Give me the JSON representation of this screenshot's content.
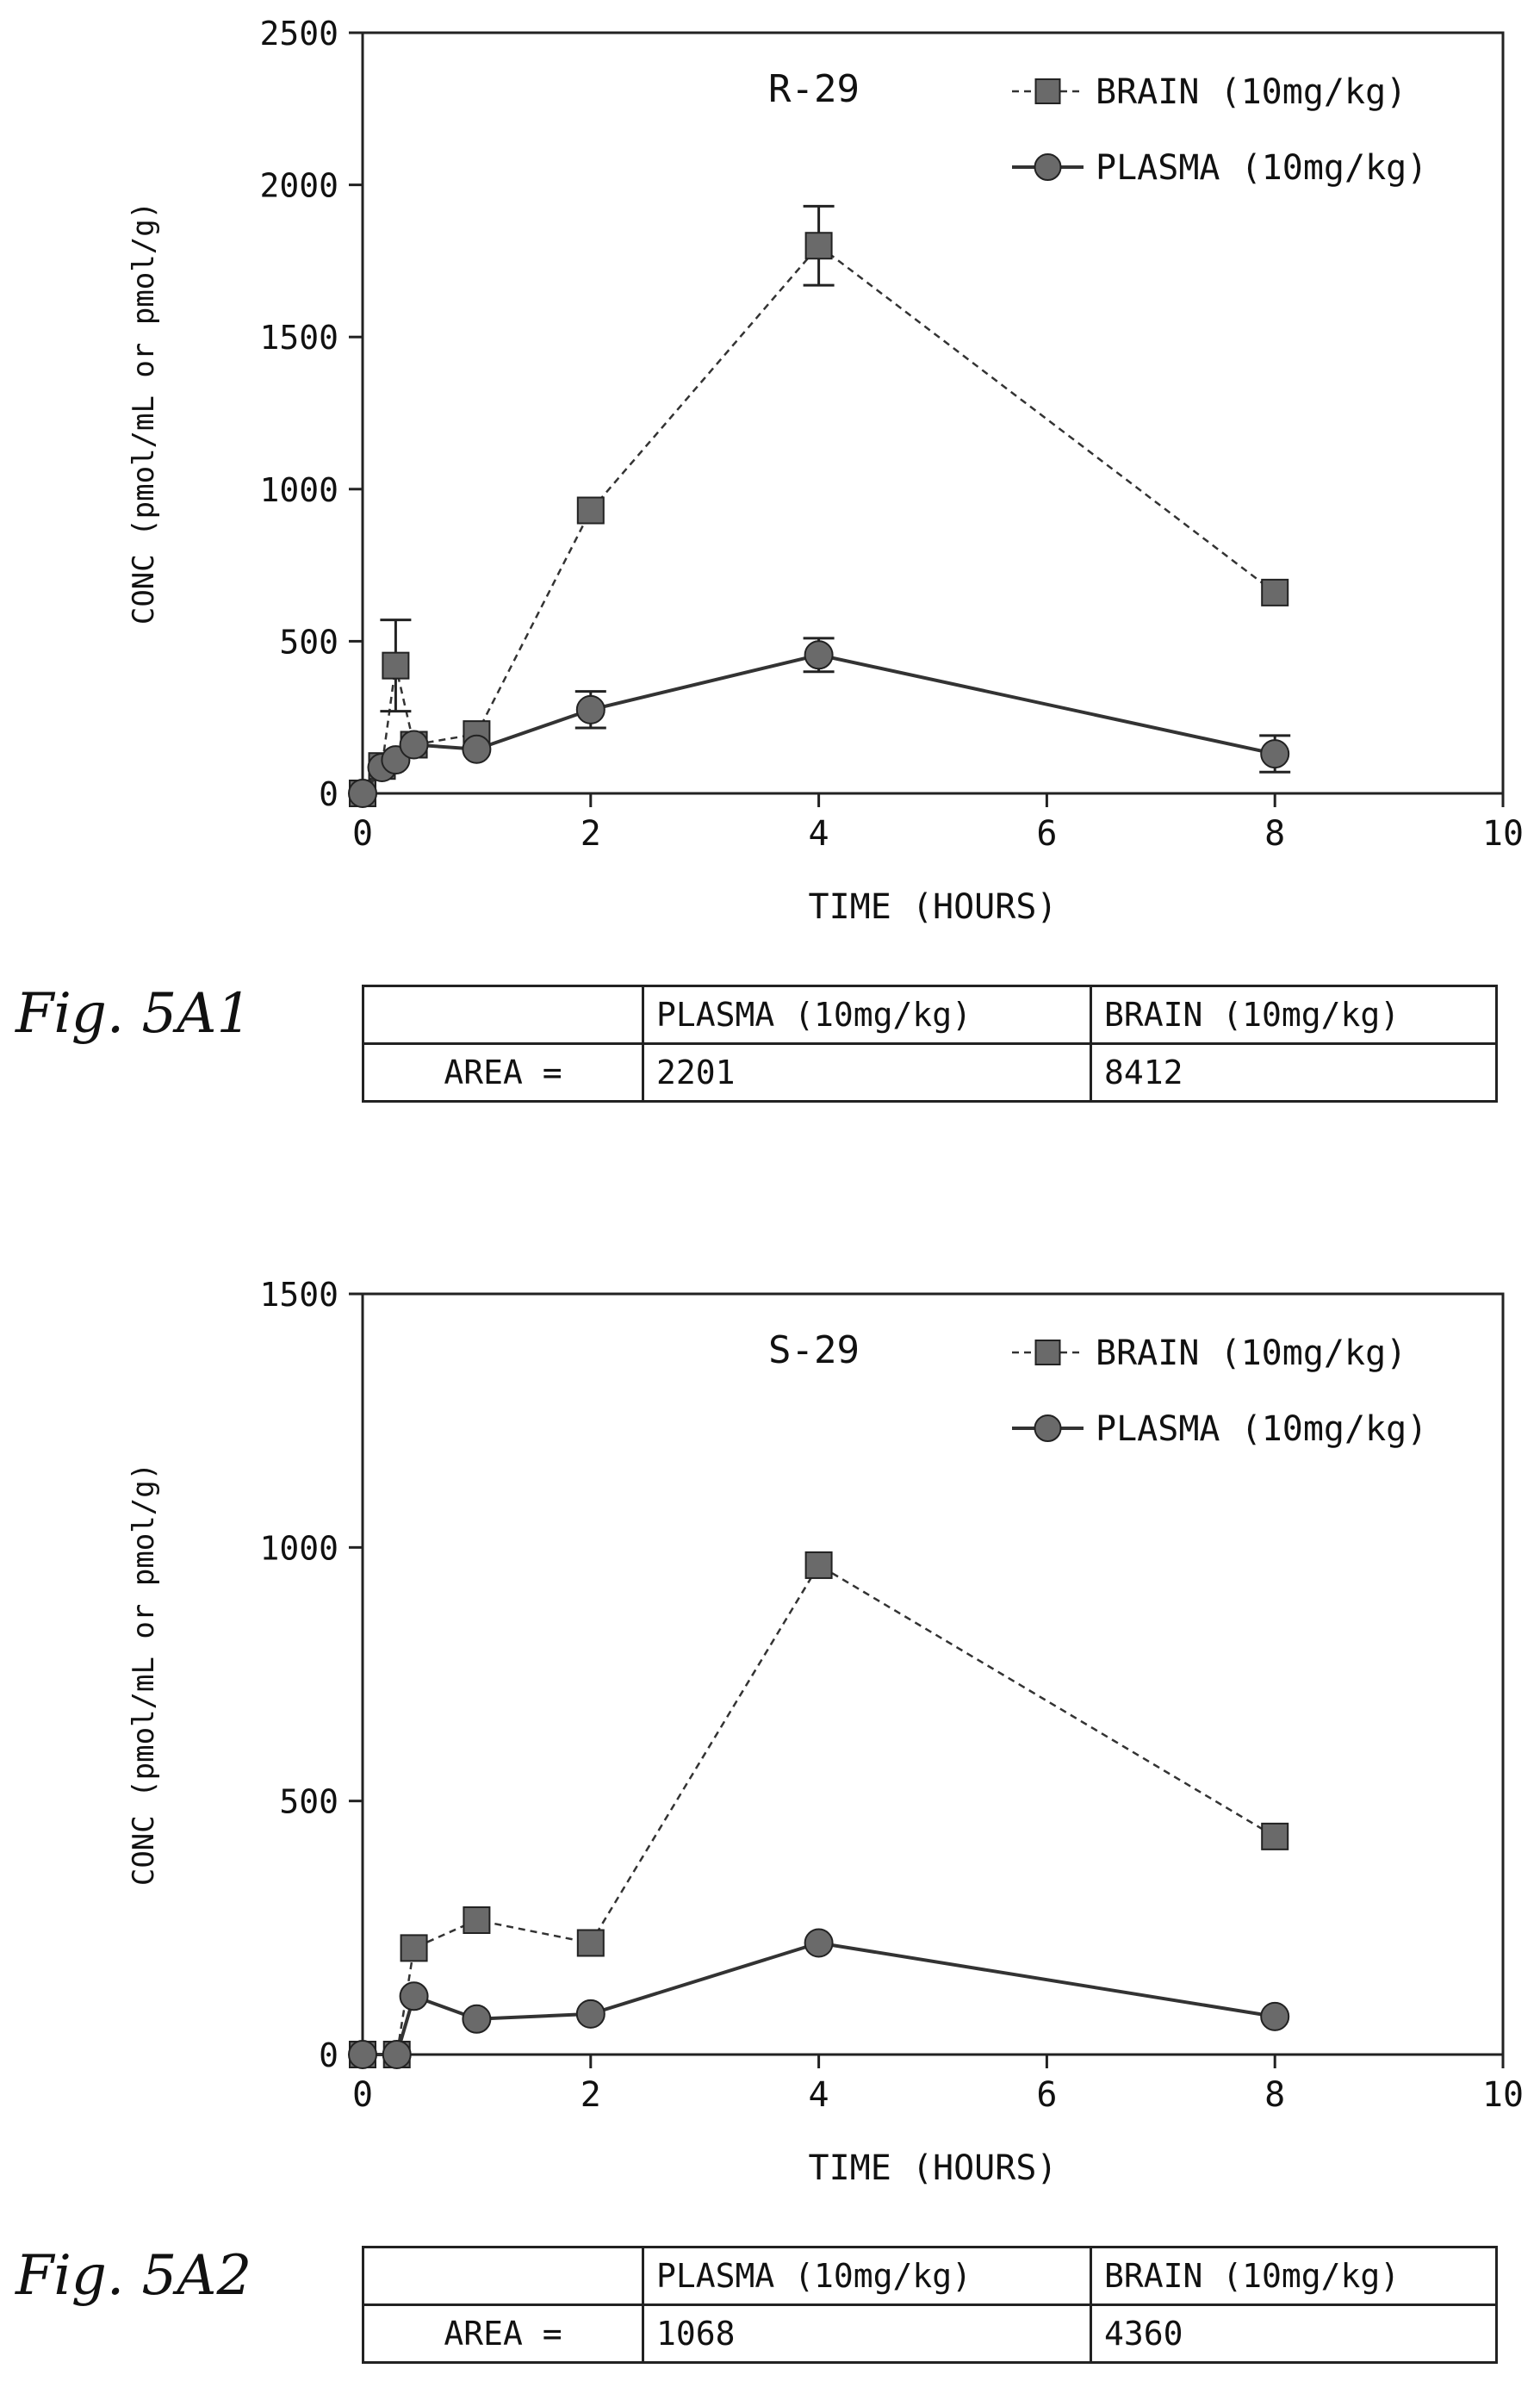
{
  "chart_data": [
    {
      "type": "line",
      "title": "R-29",
      "xlabel": "TIME (HOURS)",
      "ylabel": "CONC (pmol/mL or pmol/g)",
      "xlim": [
        0,
        10
      ],
      "ylim": [
        0,
        2500
      ],
      "xticks": [
        "0",
        "2",
        "4",
        "6",
        "8",
        "10"
      ],
      "yticks": [
        "0",
        "500",
        "1000",
        "1500",
        "2000",
        "2500"
      ],
      "grid": false,
      "legend_position": "top-right",
      "series": [
        {
          "name": "BRAIN (10mg/kg)",
          "marker": "square",
          "line_style": "dashed",
          "x": [
            0,
            0.17,
            0.29,
            0.45,
            1,
            2,
            4,
            8
          ],
          "y": [
            0,
            90,
            420,
            160,
            195,
            930,
            1800,
            660
          ],
          "error": [
            0,
            0,
            150,
            0,
            0,
            0,
            130,
            0
          ]
        },
        {
          "name": "PLASMA (10mg/kg)",
          "marker": "circle",
          "line_style": "solid",
          "x": [
            0,
            0.17,
            0.29,
            0.45,
            1,
            2,
            4,
            8
          ],
          "y": [
            0,
            85,
            110,
            160,
            145,
            275,
            455,
            130
          ],
          "error": [
            0,
            0,
            0,
            0,
            0,
            60,
            55,
            60
          ]
        }
      ]
    },
    {
      "type": "line",
      "title": "S-29",
      "xlabel": "TIME (HOURS)",
      "ylabel": "CONC (pmol/mL or pmol/g)",
      "xlim": [
        0,
        10
      ],
      "ylim": [
        0,
        1500
      ],
      "xticks": [
        "0",
        "2",
        "4",
        "6",
        "8",
        "10"
      ],
      "yticks": [
        "0",
        "500",
        "1000",
        "1500"
      ],
      "grid": false,
      "legend_position": "top-right",
      "series": [
        {
          "name": "BRAIN (10mg/kg)",
          "marker": "square",
          "line_style": "dashed",
          "x": [
            0,
            0.3,
            0.45,
            1,
            2,
            4,
            8
          ],
          "y": [
            0,
            0,
            210,
            265,
            220,
            965,
            430
          ],
          "error": [
            0,
            0,
            0,
            0,
            0,
            0,
            0
          ]
        },
        {
          "name": "PLASMA (10mg/kg)",
          "marker": "circle",
          "line_style": "solid",
          "x": [
            0,
            0.3,
            0.45,
            1,
            2,
            4,
            8
          ],
          "y": [
            0,
            0,
            115,
            70,
            80,
            220,
            75
          ],
          "error": [
            0,
            0,
            0,
            0,
            0,
            0,
            0
          ]
        }
      ]
    }
  ],
  "figures": [
    {
      "label": "Fig. 5A1",
      "table": {
        "headers": [
          "",
          "PLASMA (10mg/kg)",
          "BRAIN (10mg/kg)"
        ],
        "row_label": "AREA =",
        "values": [
          "2201",
          "8412"
        ]
      }
    },
    {
      "label": "Fig. 5A2",
      "table": {
        "headers": [
          "",
          "PLASMA (10mg/kg)",
          "BRAIN (10mg/kg)"
        ],
        "row_label": "AREA =",
        "values": [
          "1068",
          "4360"
        ]
      }
    }
  ]
}
